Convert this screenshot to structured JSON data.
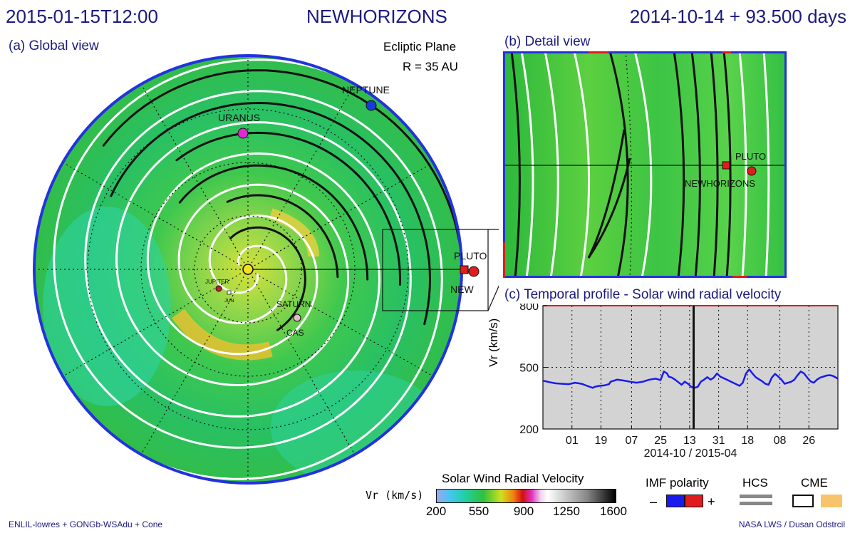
{
  "header": {
    "datetime": "2015-01-15T12:00",
    "spacecraft": "NEWHORIZONS",
    "elapsed": "2014-10-14 + 93.500 days"
  },
  "global_view": {
    "title": "(a) Global view",
    "plane": "Ecliptic Plane",
    "radius": "R = 35 AU",
    "bodies": [
      {
        "label": "NEPTUNE",
        "color": "#1a3ad8"
      },
      {
        "label": "URANUS",
        "color": "#e22ad4"
      },
      {
        "label": "PLUTO",
        "color": "#e01c1c"
      },
      {
        "label": "NEW",
        "color": "#e01c1c"
      },
      {
        "label": "SATURN",
        "color": "#e8b8c8"
      },
      {
        "label": "CAS",
        "color": "#e8b8c8"
      },
      {
        "label": "JUPITER",
        "color": "#c0202a"
      },
      {
        "label": "JUN",
        "color": "#ffffff"
      }
    ]
  },
  "detail_view": {
    "title": "(b) Detail view",
    "labels": {
      "pluto": "PLUTO",
      "newhorizons": "NEWHORIZONS"
    }
  },
  "temporal_profile": {
    "title": "(c) Temporal profile - Solar wind radial velocity",
    "ylabel": "Vr (km/s)",
    "xlabel": "2014-10 / 2015-04"
  },
  "chart_data": {
    "type": "line",
    "title": "(c) Temporal profile - Solar wind radial velocity",
    "xlabel": "2014-10 / 2015-04",
    "ylabel": "Vr (km/s)",
    "ylim": [
      200,
      800
    ],
    "y_ticks": [
      200,
      500,
      800
    ],
    "x_tick_labels": [
      "01",
      "19",
      "07",
      "25",
      "13",
      "31",
      "18",
      "08",
      "26"
    ],
    "x_tick_days": [
      18,
      36,
      55,
      73,
      91,
      109,
      127,
      147,
      165
    ],
    "xlim_days": [
      0,
      183
    ],
    "current_day": 93.5,
    "grid": true,
    "series": [
      {
        "color": "#1a1aee",
        "x_days": [
          0,
          4,
          8,
          12,
          16,
          20,
          24,
          28,
          31,
          32,
          35,
          38,
          41,
          42,
          46,
          50,
          54,
          58,
          62,
          66,
          70,
          73,
          75,
          77,
          78,
          80,
          82,
          84,
          86,
          88,
          90,
          92,
          94,
          96,
          98,
          100,
          102,
          104,
          106,
          108,
          110,
          114,
          118,
          122,
          124,
          126,
          128,
          130,
          132,
          134,
          136,
          138,
          140,
          142,
          144,
          146,
          148,
          150,
          154,
          156,
          158,
          160,
          162,
          164,
          166,
          168,
          170,
          172,
          174,
          176,
          178,
          180,
          183
        ],
        "values": [
          435,
          428,
          422,
          420,
          418,
          425,
          420,
          408,
          400,
          405,
          410,
          412,
          418,
          430,
          440,
          436,
          430,
          425,
          430,
          440,
          445,
          438,
          480,
          470,
          455,
          450,
          440,
          428,
          415,
          430,
          420,
          405,
          400,
          405,
          430,
          440,
          452,
          440,
          450,
          470,
          455,
          440,
          425,
          410,
          425,
          470,
          490,
          470,
          452,
          442,
          432,
          420,
          415,
          450,
          468,
          455,
          440,
          420,
          430,
          440,
          462,
          480,
          470,
          450,
          432,
          425,
          440,
          450,
          455,
          460,
          462,
          458,
          445
        ]
      }
    ]
  },
  "colorbar": {
    "title": "Solar Wind Radial Velocity",
    "unit_label": "Vr (km/s)",
    "ticks": [
      "200",
      "550",
      "900",
      "1250",
      "1600"
    ]
  },
  "legend": {
    "imf_title": "IMF polarity",
    "minus": "–",
    "plus": "+",
    "hcs": "HCS",
    "cme": "CME",
    "imf_colors": [
      "#1a1aee",
      "#e01c1c"
    ],
    "cme_fill": "#f7c46a"
  },
  "footer": {
    "left": "ENLIL-lowres + GONGb-WSAdu + Cone",
    "right": "NASA LWS / Dusan Odstrcil"
  }
}
